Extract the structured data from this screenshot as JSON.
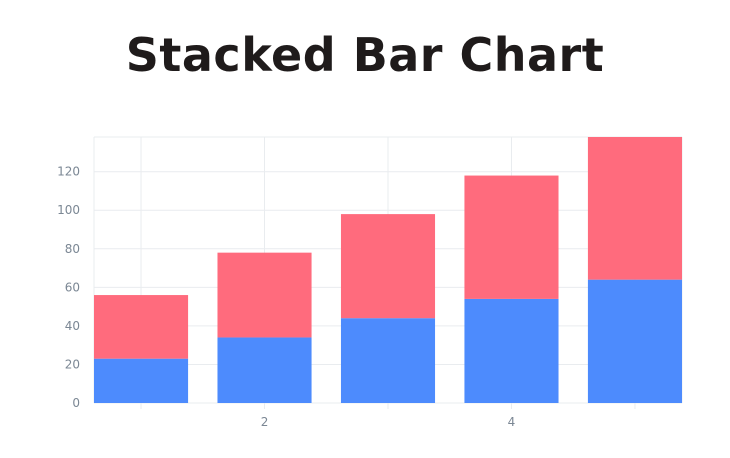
{
  "title": "Stacked Bar Chart",
  "chart_data": {
    "type": "bar",
    "stacked": true,
    "title": "Stacked Bar Chart",
    "xlabel": "",
    "ylabel": "",
    "x": [
      1,
      2,
      3,
      4,
      5
    ],
    "x_tick_labels_shown": [
      "2",
      "4"
    ],
    "y_ticks": [
      0,
      20,
      40,
      60,
      80,
      100,
      120
    ],
    "ylim": [
      0,
      138
    ],
    "grid": true,
    "legend": "none",
    "series": [
      {
        "values": [
          23,
          34,
          44,
          54,
          64
        ],
        "color": "#4d8bfd"
      },
      {
        "values": [
          33,
          44,
          54,
          64,
          74
        ],
        "color": "#ff6b7d"
      }
    ]
  }
}
